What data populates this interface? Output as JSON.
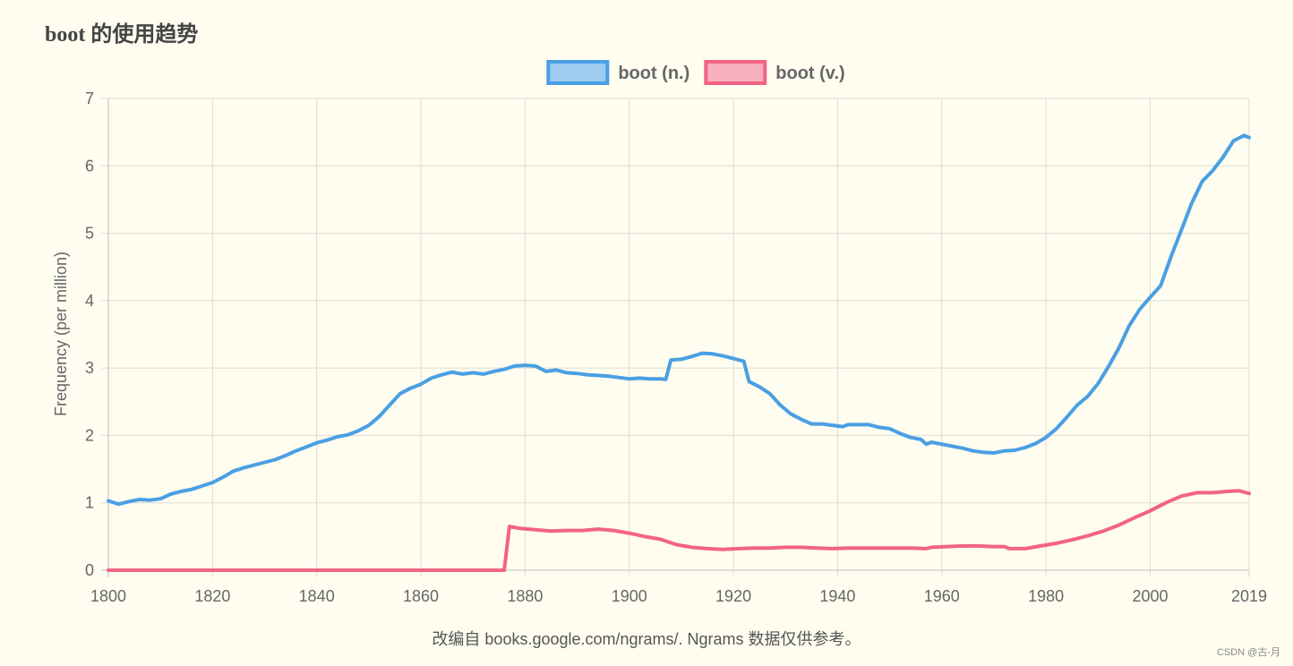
{
  "page": {
    "title": "boot 的使用趋势",
    "source_note": "改编自 books.google.com/ngrams/. Ngrams 数据仅供参考。",
    "watermark": "CSDN @古-月"
  },
  "chart_data": {
    "type": "line",
    "title": "boot 的使用趋势",
    "xlabel": "",
    "ylabel": "Frequency (per million)",
    "xlim": [
      1800,
      2019
    ],
    "ylim": [
      0,
      7
    ],
    "x_ticks": [
      1800,
      1820,
      1840,
      1860,
      1880,
      1900,
      1920,
      1940,
      1960,
      1980,
      2000,
      2019
    ],
    "y_ticks": [
      0,
      1,
      2,
      3,
      4,
      5,
      6,
      7
    ],
    "grid": true,
    "legend_position": "top-center",
    "series": [
      {
        "name": "boot (n.)",
        "color": "#4a9fe3",
        "fill": "#9dccf0",
        "points": [
          [
            1800,
            1.03
          ],
          [
            1802,
            0.98
          ],
          [
            1804,
            1.02
          ],
          [
            1806,
            1.05
          ],
          [
            1808,
            1.04
          ],
          [
            1810,
            1.06
          ],
          [
            1812,
            1.13
          ],
          [
            1814,
            1.17
          ],
          [
            1816,
            1.2
          ],
          [
            1818,
            1.25
          ],
          [
            1820,
            1.3
          ],
          [
            1822,
            1.38
          ],
          [
            1824,
            1.47
          ],
          [
            1826,
            1.52
          ],
          [
            1828,
            1.56
          ],
          [
            1830,
            1.6
          ],
          [
            1832,
            1.64
          ],
          [
            1834,
            1.7
          ],
          [
            1836,
            1.77
          ],
          [
            1838,
            1.83
          ],
          [
            1840,
            1.89
          ],
          [
            1842,
            1.93
          ],
          [
            1844,
            1.98
          ],
          [
            1846,
            2.01
          ],
          [
            1848,
            2.07
          ],
          [
            1850,
            2.15
          ],
          [
            1852,
            2.28
          ],
          [
            1854,
            2.45
          ],
          [
            1856,
            2.62
          ],
          [
            1858,
            2.7
          ],
          [
            1860,
            2.76
          ],
          [
            1862,
            2.85
          ],
          [
            1864,
            2.9
          ],
          [
            1866,
            2.94
          ],
          [
            1868,
            2.91
          ],
          [
            1870,
            2.93
          ],
          [
            1872,
            2.91
          ],
          [
            1874,
            2.95
          ],
          [
            1876,
            2.98
          ],
          [
            1878,
            3.03
          ],
          [
            1880,
            3.04
          ],
          [
            1882,
            3.03
          ],
          [
            1884,
            2.95
          ],
          [
            1886,
            2.97
          ],
          [
            1888,
            2.93
          ],
          [
            1890,
            2.92
          ],
          [
            1892,
            2.9
          ],
          [
            1894,
            2.89
          ],
          [
            1896,
            2.88
          ],
          [
            1898,
            2.86
          ],
          [
            1900,
            2.84
          ],
          [
            1902,
            2.85
          ],
          [
            1904,
            2.84
          ],
          [
            1906,
            2.84
          ],
          [
            1907,
            2.83
          ],
          [
            1908,
            3.12
          ],
          [
            1910,
            3.13
          ],
          [
            1912,
            3.17
          ],
          [
            1914,
            3.22
          ],
          [
            1916,
            3.21
          ],
          [
            1918,
            3.18
          ],
          [
            1920,
            3.14
          ],
          [
            1922,
            3.1
          ],
          [
            1923,
            2.8
          ],
          [
            1925,
            2.72
          ],
          [
            1927,
            2.62
          ],
          [
            1929,
            2.45
          ],
          [
            1931,
            2.32
          ],
          [
            1933,
            2.24
          ],
          [
            1935,
            2.17
          ],
          [
            1937,
            2.17
          ],
          [
            1939,
            2.15
          ],
          [
            1941,
            2.13
          ],
          [
            1942,
            2.16
          ],
          [
            1944,
            2.16
          ],
          [
            1946,
            2.16
          ],
          [
            1948,
            2.12
          ],
          [
            1950,
            2.1
          ],
          [
            1952,
            2.03
          ],
          [
            1954,
            1.97
          ],
          [
            1956,
            1.94
          ],
          [
            1957,
            1.87
          ],
          [
            1958,
            1.9
          ],
          [
            1960,
            1.87
          ],
          [
            1962,
            1.84
          ],
          [
            1964,
            1.81
          ],
          [
            1966,
            1.77
          ],
          [
            1968,
            1.75
          ],
          [
            1970,
            1.74
          ],
          [
            1972,
            1.77
          ],
          [
            1974,
            1.78
          ],
          [
            1976,
            1.82
          ],
          [
            1978,
            1.88
          ],
          [
            1980,
            1.97
          ],
          [
            1982,
            2.1
          ],
          [
            1984,
            2.27
          ],
          [
            1986,
            2.45
          ],
          [
            1988,
            2.58
          ],
          [
            1990,
            2.77
          ],
          [
            1992,
            3.02
          ],
          [
            1994,
            3.3
          ],
          [
            1996,
            3.63
          ],
          [
            1998,
            3.87
          ],
          [
            2000,
            4.05
          ],
          [
            2002,
            4.22
          ],
          [
            2004,
            4.65
          ],
          [
            2006,
            5.05
          ],
          [
            2008,
            5.45
          ],
          [
            2010,
            5.77
          ],
          [
            2012,
            5.93
          ],
          [
            2014,
            6.13
          ],
          [
            2016,
            6.37
          ],
          [
            2018,
            6.45
          ],
          [
            2019,
            6.42
          ]
        ]
      },
      {
        "name": "boot (v.)",
        "color": "#f26385",
        "fill": "#f8b0c0",
        "points": [
          [
            1800,
            0.0
          ],
          [
            1876,
            0.0
          ],
          [
            1877,
            0.65
          ],
          [
            1879,
            0.62
          ],
          [
            1882,
            0.6
          ],
          [
            1885,
            0.58
          ],
          [
            1888,
            0.59
          ],
          [
            1891,
            0.59
          ],
          [
            1894,
            0.61
          ],
          [
            1897,
            0.59
          ],
          [
            1900,
            0.55
          ],
          [
            1903,
            0.5
          ],
          [
            1906,
            0.46
          ],
          [
            1909,
            0.38
          ],
          [
            1912,
            0.34
          ],
          [
            1915,
            0.32
          ],
          [
            1918,
            0.31
          ],
          [
            1921,
            0.32
          ],
          [
            1924,
            0.33
          ],
          [
            1927,
            0.33
          ],
          [
            1930,
            0.34
          ],
          [
            1933,
            0.34
          ],
          [
            1936,
            0.33
          ],
          [
            1939,
            0.32
          ],
          [
            1942,
            0.33
          ],
          [
            1945,
            0.33
          ],
          [
            1948,
            0.33
          ],
          [
            1951,
            0.33
          ],
          [
            1954,
            0.33
          ],
          [
            1957,
            0.32
          ],
          [
            1958,
            0.34
          ],
          [
            1961,
            0.35
          ],
          [
            1964,
            0.36
          ],
          [
            1967,
            0.36
          ],
          [
            1970,
            0.35
          ],
          [
            1972,
            0.35
          ],
          [
            1973,
            0.32
          ],
          [
            1976,
            0.32
          ],
          [
            1979,
            0.36
          ],
          [
            1982,
            0.4
          ],
          [
            1985,
            0.45
          ],
          [
            1988,
            0.51
          ],
          [
            1991,
            0.58
          ],
          [
            1994,
            0.67
          ],
          [
            1997,
            0.78
          ],
          [
            2000,
            0.88
          ],
          [
            2003,
            1.0
          ],
          [
            2006,
            1.1
          ],
          [
            2009,
            1.15
          ],
          [
            2012,
            1.15
          ],
          [
            2015,
            1.17
          ],
          [
            2017,
            1.18
          ],
          [
            2019,
            1.14
          ]
        ]
      }
    ]
  }
}
